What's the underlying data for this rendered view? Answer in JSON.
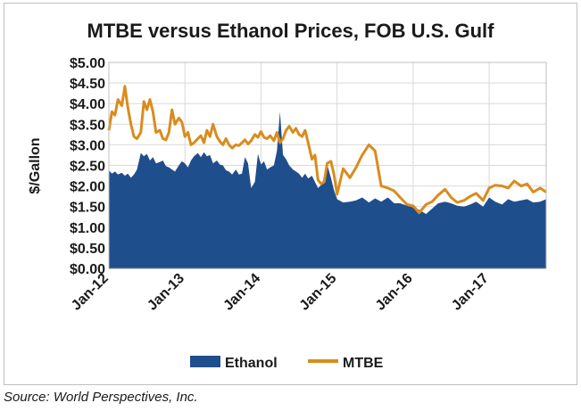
{
  "chart_data": {
    "type": "area",
    "title": "MTBE versus Ethanol Prices, FOB U.S. Gulf",
    "ylabel": "$/Gallon",
    "xlabel": "",
    "ylim": [
      0,
      5
    ],
    "yticks": [
      "$0.00",
      "$0.50",
      "$1.00",
      "$1.50",
      "$2.00",
      "$2.50",
      "$3.00",
      "$3.50",
      "$4.00",
      "$4.50",
      "$5.00"
    ],
    "ytick_values": [
      0,
      0.5,
      1,
      1.5,
      2,
      2.5,
      3,
      3.5,
      4,
      4.5,
      5
    ],
    "xlim": [
      2012.0,
      2017.75
    ],
    "xticks": [
      "Jan-12",
      "Jan-13",
      "Jan-14",
      "Jan-15",
      "Jan-16",
      "Jan-17"
    ],
    "xtick_values": [
      2012.0,
      2013.0,
      2014.0,
      2015.0,
      2016.0,
      2017.0
    ],
    "grid": true,
    "legend_position": "bottom",
    "series": [
      {
        "name": "Ethanol",
        "style": "area",
        "color": "#1f4e8c",
        "x": [
          2012.0,
          2012.04,
          2012.08,
          2012.12,
          2012.17,
          2012.21,
          2012.25,
          2012.29,
          2012.33,
          2012.37,
          2012.42,
          2012.46,
          2012.5,
          2012.54,
          2012.58,
          2012.62,
          2012.67,
          2012.71,
          2012.75,
          2012.79,
          2012.83,
          2012.87,
          2012.92,
          2012.96,
          2013.0,
          2013.04,
          2013.08,
          2013.12,
          2013.17,
          2013.21,
          2013.25,
          2013.29,
          2013.33,
          2013.37,
          2013.42,
          2013.46,
          2013.5,
          2013.54,
          2013.58,
          2013.62,
          2013.67,
          2013.71,
          2013.75,
          2013.79,
          2013.83,
          2013.87,
          2013.92,
          2013.96,
          2014.0,
          2014.04,
          2014.08,
          2014.12,
          2014.17,
          2014.21,
          2014.25,
          2014.29,
          2014.33,
          2014.37,
          2014.42,
          2014.46,
          2014.5,
          2014.54,
          2014.58,
          2014.62,
          2014.67,
          2014.71,
          2014.75,
          2014.79,
          2014.83,
          2014.87,
          2014.92,
          2014.96,
          2015.0,
          2015.08,
          2015.17,
          2015.25,
          2015.33,
          2015.42,
          2015.5,
          2015.58,
          2015.67,
          2015.75,
          2015.83,
          2015.92,
          2016.0,
          2016.08,
          2016.17,
          2016.25,
          2016.33,
          2016.42,
          2016.5,
          2016.58,
          2016.67,
          2016.75,
          2016.83,
          2016.92,
          2017.0,
          2017.08,
          2017.17,
          2017.25,
          2017.33,
          2017.42,
          2017.5,
          2017.58,
          2017.67,
          2017.75
        ],
        "values": [
          2.38,
          2.3,
          2.35,
          2.28,
          2.32,
          2.25,
          2.3,
          2.2,
          2.28,
          2.4,
          2.8,
          2.72,
          2.78,
          2.62,
          2.7,
          2.55,
          2.58,
          2.62,
          2.48,
          2.45,
          2.4,
          2.35,
          2.5,
          2.6,
          2.55,
          2.45,
          2.62,
          2.72,
          2.8,
          2.7,
          2.82,
          2.72,
          2.75,
          2.55,
          2.62,
          2.52,
          2.5,
          2.38,
          2.35,
          2.28,
          2.4,
          2.28,
          2.3,
          2.7,
          2.55,
          1.95,
          2.1,
          2.78,
          2.52,
          2.6,
          2.4,
          2.45,
          2.5,
          2.85,
          3.8,
          2.75,
          2.65,
          2.5,
          2.4,
          2.35,
          2.3,
          2.2,
          2.3,
          2.18,
          2.25,
          2.1,
          1.95,
          2.02,
          2.2,
          2.52,
          2.2,
          1.9,
          1.68,
          1.6,
          1.62,
          1.65,
          1.72,
          1.6,
          1.7,
          1.62,
          1.72,
          1.58,
          1.58,
          1.52,
          1.48,
          1.42,
          1.32,
          1.45,
          1.58,
          1.62,
          1.58,
          1.52,
          1.5,
          1.55,
          1.62,
          1.5,
          1.72,
          1.62,
          1.55,
          1.68,
          1.62,
          1.65,
          1.68,
          1.6,
          1.62,
          1.68
        ]
      },
      {
        "name": "MTBE",
        "style": "line",
        "color": "#d98c1e",
        "x": [
          2012.0,
          2012.04,
          2012.08,
          2012.12,
          2012.17,
          2012.21,
          2012.25,
          2012.29,
          2012.33,
          2012.37,
          2012.42,
          2012.46,
          2012.5,
          2012.54,
          2012.58,
          2012.62,
          2012.67,
          2012.71,
          2012.75,
          2012.79,
          2012.83,
          2012.87,
          2012.92,
          2012.96,
          2013.0,
          2013.04,
          2013.08,
          2013.12,
          2013.17,
          2013.21,
          2013.25,
          2013.29,
          2013.33,
          2013.37,
          2013.42,
          2013.46,
          2013.5,
          2013.54,
          2013.58,
          2013.62,
          2013.67,
          2013.71,
          2013.75,
          2013.79,
          2013.83,
          2013.87,
          2013.92,
          2013.96,
          2014.0,
          2014.04,
          2014.08,
          2014.12,
          2014.17,
          2014.21,
          2014.25,
          2014.29,
          2014.33,
          2014.37,
          2014.42,
          2014.46,
          2014.5,
          2014.54,
          2014.58,
          2014.62,
          2014.67,
          2014.71,
          2014.75,
          2014.79,
          2014.83,
          2014.87,
          2014.92,
          2014.96,
          2015.0,
          2015.08,
          2015.17,
          2015.25,
          2015.33,
          2015.42,
          2015.5,
          2015.58,
          2015.67,
          2015.75,
          2015.83,
          2015.92,
          2016.0,
          2016.08,
          2016.17,
          2016.25,
          2016.33,
          2016.42,
          2016.5,
          2016.58,
          2016.67,
          2016.75,
          2016.83,
          2016.92,
          2017.0,
          2017.08,
          2017.17,
          2017.25,
          2017.33,
          2017.42,
          2017.5,
          2017.58,
          2017.67,
          2017.75
        ],
        "values": [
          3.35,
          3.8,
          3.72,
          4.1,
          3.95,
          4.42,
          3.9,
          3.5,
          3.2,
          3.15,
          3.3,
          4.05,
          3.85,
          4.1,
          3.8,
          3.3,
          3.35,
          3.15,
          3.12,
          3.3,
          3.85,
          3.5,
          3.65,
          3.55,
          3.2,
          3.3,
          3.0,
          3.05,
          3.15,
          3.22,
          3.05,
          3.35,
          3.2,
          3.5,
          3.2,
          3.08,
          3.0,
          3.15,
          3.0,
          2.92,
          3.0,
          2.98,
          3.05,
          3.12,
          3.02,
          3.1,
          3.25,
          3.18,
          3.32,
          3.18,
          3.15,
          3.22,
          3.1,
          3.3,
          3.05,
          3.15,
          3.35,
          3.45,
          3.3,
          3.4,
          3.25,
          3.2,
          3.35,
          3.05,
          2.65,
          2.75,
          2.15,
          2.05,
          2.1,
          2.55,
          2.6,
          2.28,
          1.8,
          2.42,
          2.2,
          2.45,
          2.75,
          3.0,
          2.85,
          2.0,
          1.95,
          1.88,
          1.72,
          1.55,
          1.52,
          1.35,
          1.55,
          1.62,
          1.78,
          1.92,
          1.72,
          1.6,
          1.65,
          1.75,
          1.82,
          1.65,
          1.95,
          2.02,
          2.0,
          1.95,
          2.12,
          2.0,
          2.05,
          1.85,
          1.95,
          1.85
        ]
      }
    ]
  },
  "source_text": "Source: World Perspectives, Inc."
}
